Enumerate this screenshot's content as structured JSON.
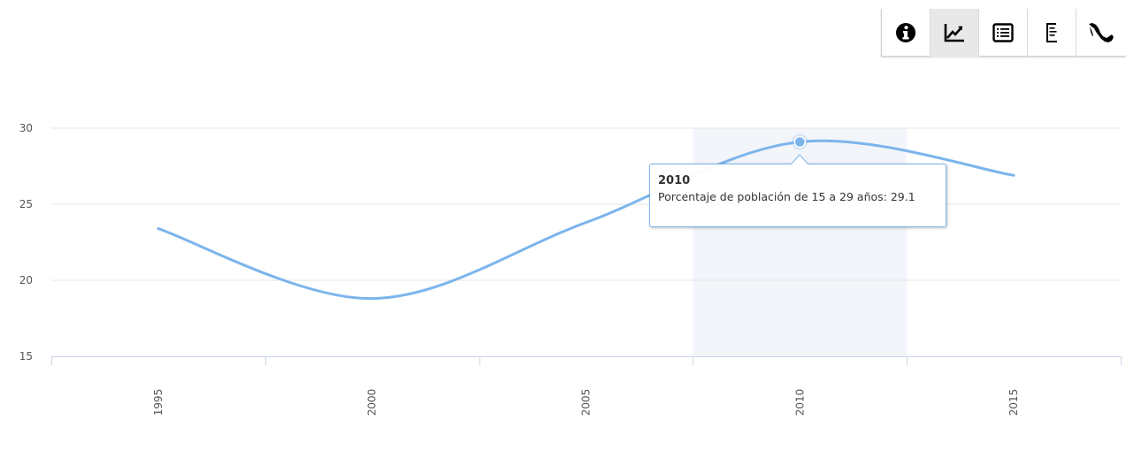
{
  "toolbar": {
    "buttons": [
      {
        "icon": "info-icon",
        "active": false
      },
      {
        "icon": "line-chart-icon",
        "active": true
      },
      {
        "icon": "table-list-icon",
        "active": false
      },
      {
        "icon": "text-document-icon",
        "active": false
      },
      {
        "icon": "mexico-map-icon",
        "active": false
      }
    ]
  },
  "chart_data": {
    "type": "line",
    "x": [
      1995,
      2000,
      2005,
      2010,
      2015
    ],
    "series": [
      {
        "values": [
          23.4,
          18.8,
          23.8,
          29.1,
          26.9
        ],
        "color": "#7cb5ec"
      }
    ],
    "ylim": [
      15,
      30
    ],
    "yticks": [
      "15",
      "20",
      "25",
      "30"
    ],
    "xticks": [
      "1995",
      "2000",
      "2005",
      "2010",
      "2015"
    ],
    "grid": true,
    "highlight_x": 2010,
    "plot_band_color": "#f2f5fa",
    "tooltip": {
      "year": "2010",
      "text": "Porcentaje de población de 15 a 29 años: 29.1"
    }
  }
}
